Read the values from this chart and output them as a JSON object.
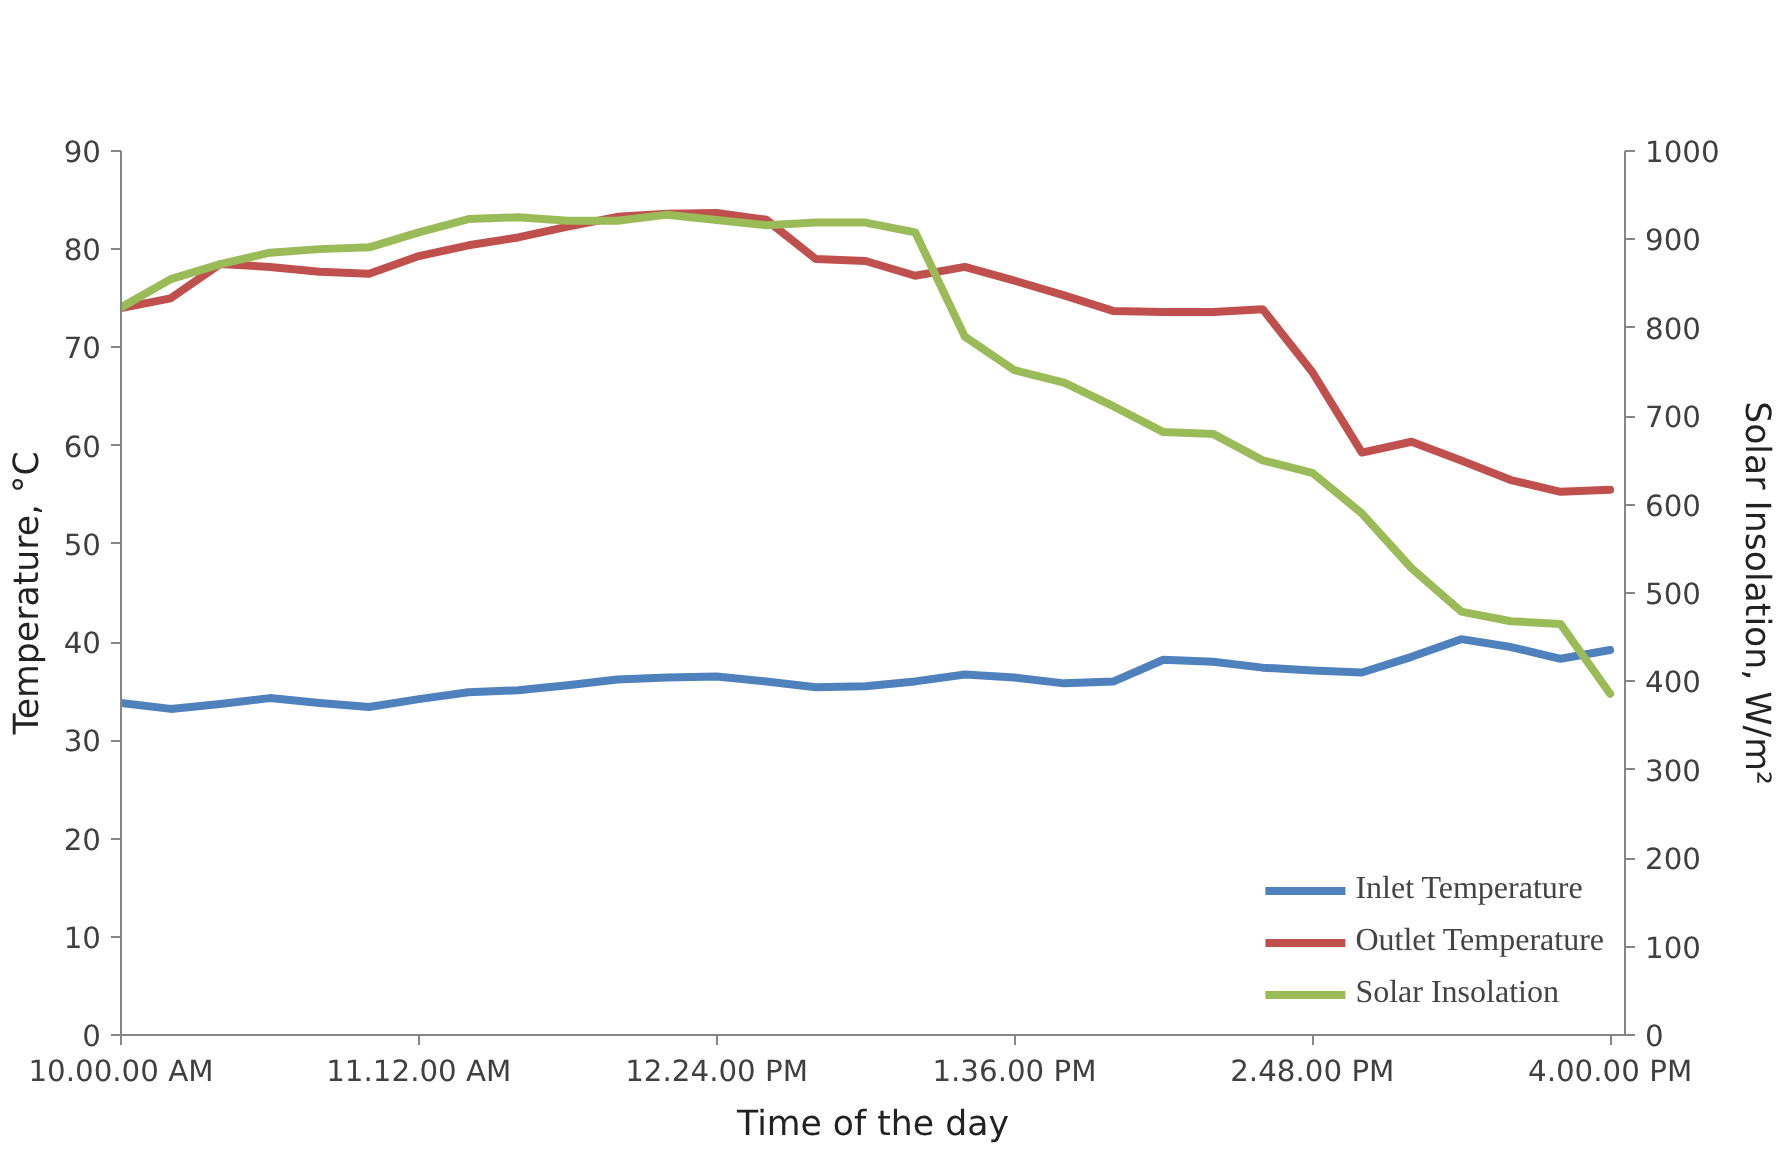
{
  "chart_data": {
    "type": "line",
    "xlabel": "Time of the day",
    "ylabel": "Temperature, °C",
    "y2label": "Solar Insolation, W/m²",
    "categories": [
      "10.00.00 AM",
      null,
      null,
      null,
      null,
      null,
      "11.12.00 AM",
      null,
      null,
      null,
      null,
      null,
      "12.24.00 PM",
      null,
      null,
      null,
      null,
      null,
      "1.36.00 PM",
      null,
      null,
      null,
      null,
      null,
      "2.48.00 PM",
      null,
      null,
      null,
      null,
      null,
      "4.00.00 PM"
    ],
    "ylim": [
      0,
      90
    ],
    "yticks": [
      0,
      10,
      20,
      30,
      40,
      50,
      60,
      70,
      80,
      90
    ],
    "y2lim": [
      0,
      1000
    ],
    "y2ticks": [
      0,
      100,
      200,
      300,
      400,
      500,
      600,
      700,
      800,
      900,
      1000
    ],
    "legend": "bottom right",
    "line_style": "solid",
    "series": [
      {
        "name": "Inlet Temperature",
        "color": "#4f81bd",
        "values": [
          33.8,
          33.2,
          33.7,
          34.3,
          33.8,
          33.4,
          34.2,
          34.9,
          35.1,
          35.6,
          36.2,
          36.4,
          36.5,
          36.0,
          35.4,
          35.5,
          36.0,
          36.7,
          36.4,
          35.8,
          36.0,
          38.2,
          38.0,
          37.4,
          37.1,
          36.9,
          38.5,
          40.3,
          39.5,
          38.3,
          39.2
        ]
      },
      {
        "name": "Outlet Temperature",
        "color": "#c0504d",
        "values": [
          74.0,
          75.0,
          78.5,
          78.2,
          77.7,
          77.5,
          79.3,
          80.4,
          81.2,
          82.3,
          83.3,
          83.6,
          83.7,
          83.0,
          79.0,
          78.8,
          77.3,
          78.2,
          76.8,
          75.3,
          73.7,
          73.6,
          73.6,
          73.9,
          67.5,
          59.3,
          60.4,
          58.5,
          56.5,
          55.3,
          55.5
        ]
      },
      {
        "name": "Solar Insolation",
        "color": "#9bbb59",
        "axis": "y2",
        "values": [
          823,
          855,
          872,
          885,
          889,
          891,
          908,
          923,
          925,
          921,
          921,
          928,
          922,
          916,
          919,
          919,
          908,
          790,
          752,
          738,
          711,
          682,
          680,
          650,
          636,
          590,
          528,
          479,
          468,
          465,
          386
        ]
      }
    ]
  }
}
